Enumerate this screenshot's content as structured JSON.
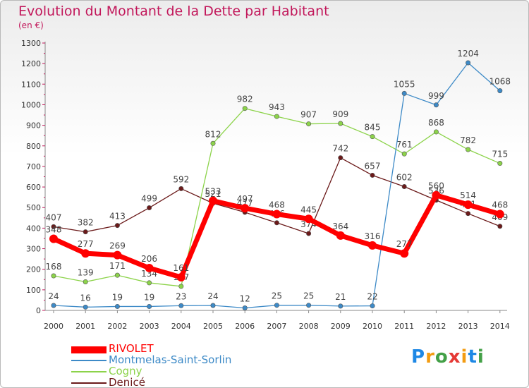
{
  "chart_data": {
    "type": "line",
    "title": "Evolution du Montant de la Dette par Habitant",
    "subtitle": "(en €)",
    "x": [
      "2000",
      "2001",
      "2002",
      "2003",
      "2004",
      "2005",
      "2006",
      "2007",
      "2008",
      "2009",
      "2010",
      "2011",
      "2012",
      "2013",
      "2014"
    ],
    "ylim": [
      0,
      1300
    ],
    "yticks": [
      0,
      100,
      200,
      300,
      400,
      500,
      600,
      700,
      800,
      900,
      1000,
      1100,
      1200,
      1300
    ],
    "grid": false,
    "legend_position": "bottom-left",
    "series": [
      {
        "name": "RIVOLET",
        "color": "#ff0000",
        "values": [
          348,
          277,
          269,
          206,
          161,
          533,
          497,
          468,
          445,
          364,
          316,
          277,
          560,
          514,
          468
        ]
      },
      {
        "name": "Montmelas-Saint-Sorlin",
        "color": "#3d8ac7",
        "values": [
          24,
          16,
          19,
          19,
          23,
          24,
          12,
          25,
          25,
          21,
          22,
          1055,
          999,
          1204,
          1068
        ]
      },
      {
        "name": "Cogny",
        "color": "#8cd34a",
        "values": [
          168,
          139,
          171,
          134,
          117,
          812,
          982,
          943,
          907,
          909,
          845,
          761,
          868,
          782,
          715
        ]
      },
      {
        "name": "Denicé",
        "color": "#6b1a1a",
        "values": [
          407,
          382,
          413,
          499,
          592,
          521,
          477,
          426,
          374,
          742,
          657,
          602,
          536,
          471,
          409
        ]
      }
    ]
  },
  "logo": {
    "letters": [
      "P",
      "r",
      "o",
      "x",
      "i",
      "t",
      "i"
    ],
    "colors": [
      "#1e88e5",
      "#f39c12",
      "#43a047",
      "#e53935",
      "#f39c12",
      "#1e88e5",
      "#43a047"
    ]
  }
}
